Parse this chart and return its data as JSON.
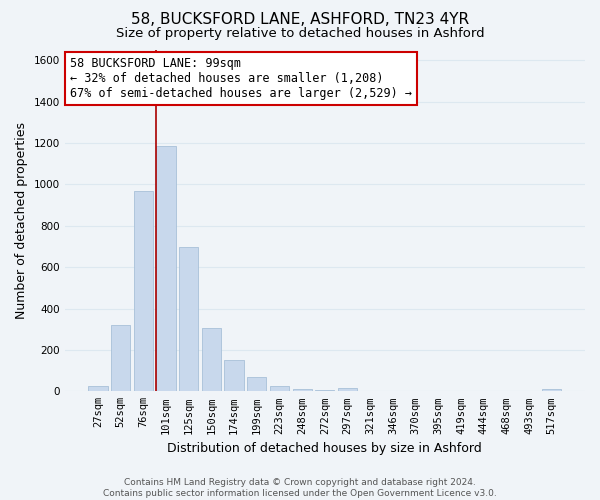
{
  "title": "58, BUCKSFORD LANE, ASHFORD, TN23 4YR",
  "subtitle": "Size of property relative to detached houses in Ashford",
  "xlabel": "Distribution of detached houses by size in Ashford",
  "ylabel": "Number of detached properties",
  "bar_labels": [
    "27sqm",
    "52sqm",
    "76sqm",
    "101sqm",
    "125sqm",
    "150sqm",
    "174sqm",
    "199sqm",
    "223sqm",
    "248sqm",
    "272sqm",
    "297sqm",
    "321sqm",
    "346sqm",
    "370sqm",
    "395sqm",
    "419sqm",
    "444sqm",
    "468sqm",
    "493sqm",
    "517sqm"
  ],
  "bar_values": [
    28,
    320,
    970,
    1185,
    700,
    305,
    150,
    70,
    25,
    10,
    5,
    18,
    3,
    1,
    1,
    1,
    1,
    1,
    1,
    1,
    12
  ],
  "bar_color": "#c8d8ec",
  "bar_edge_color": "#a8c0d8",
  "vline_color": "#aa0000",
  "vline_x_index": 3,
  "annotation_line1": "58 BUCKSFORD LANE: 99sqm",
  "annotation_line2": "← 32% of detached houses are smaller (1,208)",
  "annotation_line3": "67% of semi-detached houses are larger (2,529) →",
  "annotation_box_facecolor": "#ffffff",
  "annotation_box_edgecolor": "#cc0000",
  "ylim": [
    0,
    1650
  ],
  "yticks": [
    0,
    200,
    400,
    600,
    800,
    1000,
    1200,
    1400,
    1600
  ],
  "bg_color": "#f0f4f8",
  "grid_color": "#dde8f0",
  "title_fontsize": 11,
  "subtitle_fontsize": 9.5,
  "xlabel_fontsize": 9,
  "ylabel_fontsize": 9,
  "tick_fontsize": 7.5,
  "annotation_fontsize": 8.5,
  "footer_fontsize": 6.5,
  "footer_line1": "Contains HM Land Registry data © Crown copyright and database right 2024.",
  "footer_line2": "Contains public sector information licensed under the Open Government Licence v3.0."
}
